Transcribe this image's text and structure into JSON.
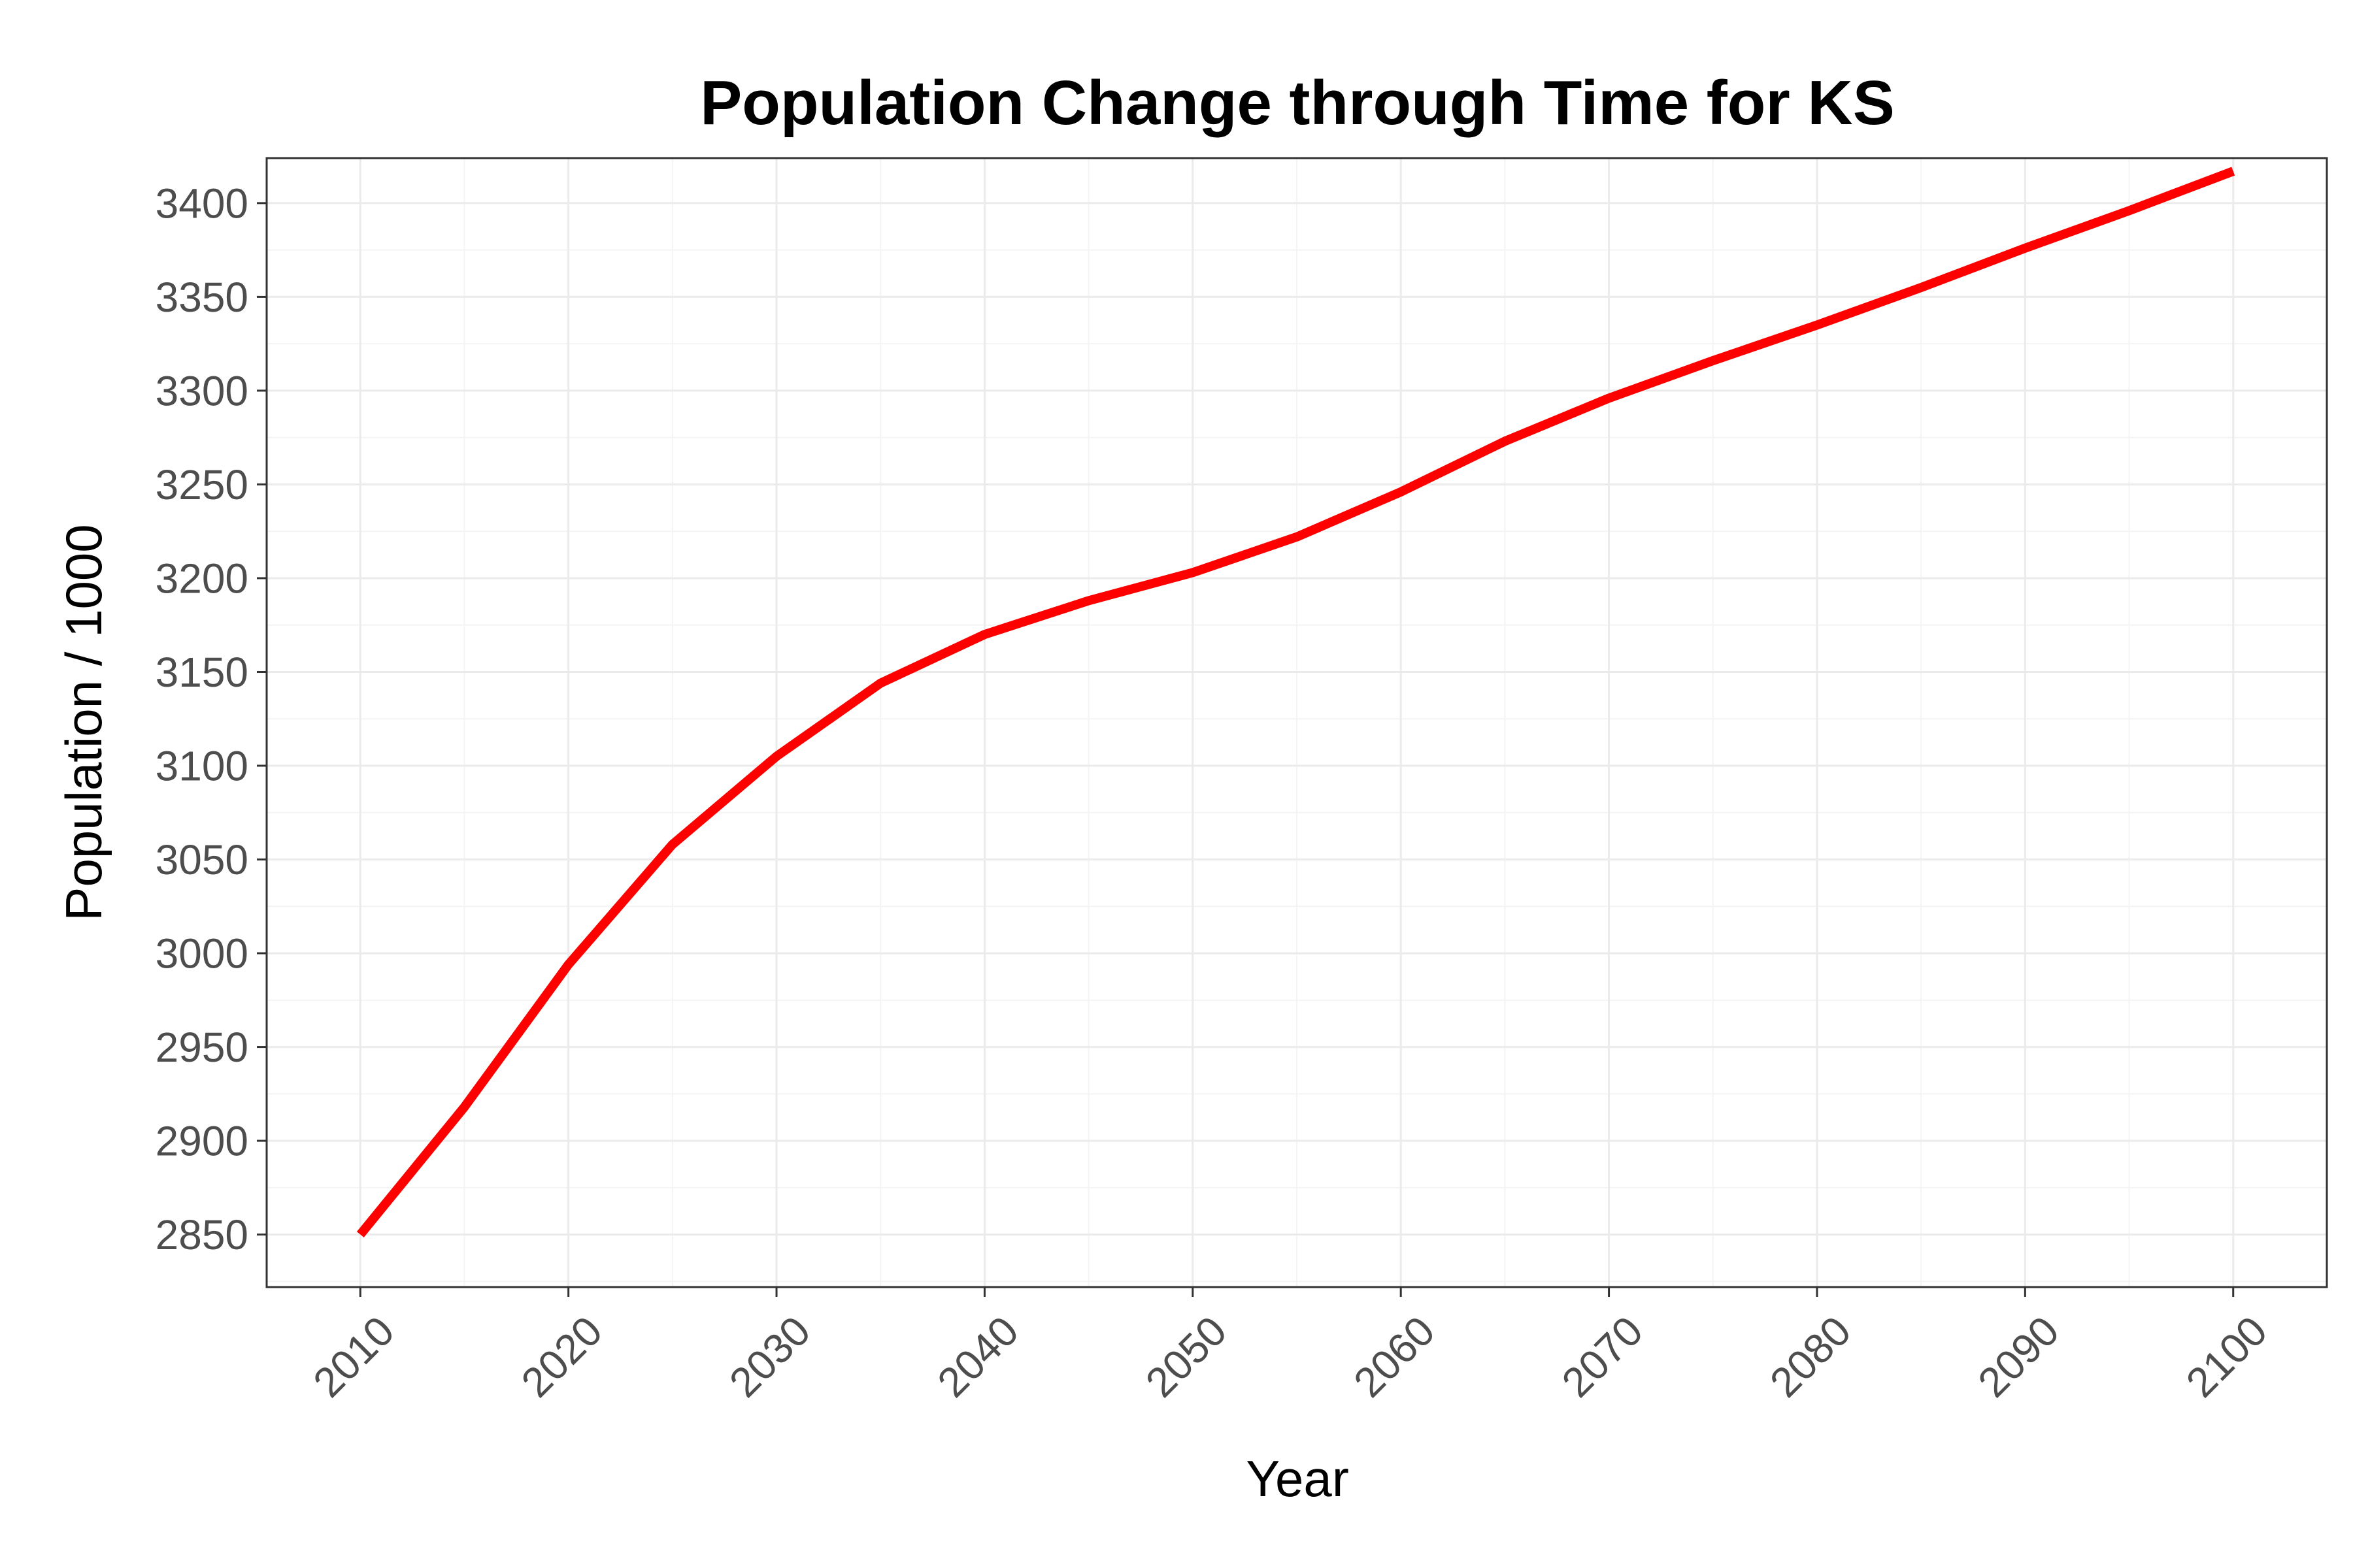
{
  "chart_data": {
    "type": "line",
    "title": "Population Change through Time for KS",
    "xlabel": "Year",
    "ylabel": "Population / 1000",
    "xlim": [
      2005.5,
      2104.5
    ],
    "ylim": [
      2822,
      3424
    ],
    "x_ticks": [
      2010,
      2020,
      2030,
      2040,
      2050,
      2060,
      2070,
      2080,
      2090,
      2100
    ],
    "y_ticks": [
      2850,
      2900,
      2950,
      3000,
      3050,
      3100,
      3150,
      3200,
      3250,
      3300,
      3350,
      3400
    ],
    "x_tick_rotation": 45,
    "grid": true,
    "legend": "none",
    "series": [
      {
        "color": "#ff0000",
        "x": [
          2010,
          2015,
          2020,
          2025,
          2030,
          2035,
          2040,
          2045,
          2050,
          2055,
          2060,
          2065,
          2070,
          2075,
          2080,
          2085,
          2090,
          2095,
          2100
        ],
        "y": [
          2850,
          2918,
          2994,
          3058,
          3105,
          3144,
          3170,
          3188,
          3203,
          3222,
          3246,
          3273,
          3296,
          3316,
          3335,
          3355,
          3376,
          3396,
          3417
        ]
      }
    ]
  }
}
